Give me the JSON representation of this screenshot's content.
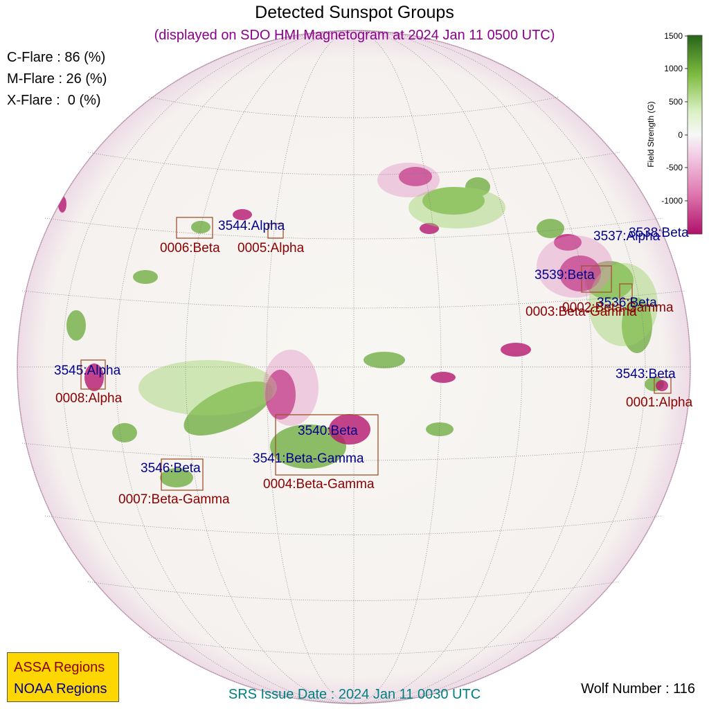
{
  "header": {
    "title": "Detected Sunspot Groups",
    "subtitle": "(displayed on SDO HMI Magnetogram at 2024 Jan 11 0500 UTC)"
  },
  "flare_probabilities": [
    {
      "label": "C-Flare : 86 (%)",
      "class": "C",
      "value": 86
    },
    {
      "label": "M-Flare : 26 (%)",
      "class": "M",
      "value": 26
    },
    {
      "label": "X-Flare :  0 (%)",
      "class": "X",
      "value": 0
    }
  ],
  "colorbar": {
    "label": "Field Strength (G)",
    "ticks": [
      "1500",
      "1000",
      "500",
      "0",
      "-500",
      "-1000"
    ],
    "range": [
      -1500,
      1500
    ],
    "colors": {
      "positive": "#2e6b1a",
      "mid_positive": "#8fcf5a",
      "neutral": "#f7f7f2",
      "mid_negative": "#e58ac2",
      "negative": "#b0106a"
    }
  },
  "regions": {
    "noaa": [
      {
        "label": "3544:Alpha"
      },
      {
        "label": "3537:Alpha"
      },
      {
        "label": "3538:Beta"
      },
      {
        "label": "3539:Beta"
      },
      {
        "label": "3536:Beta"
      },
      {
        "label": "3545:Alpha"
      },
      {
        "label": "3543:Beta"
      },
      {
        "label": "3540:Beta"
      },
      {
        "label": "3541:Beta-Gamma"
      },
      {
        "label": "3546:Beta"
      }
    ],
    "assa": [
      {
        "label": "0006:Beta"
      },
      {
        "label": "0005:Alpha"
      },
      {
        "label": "0002:Beta-Gamma"
      },
      {
        "label": "0003:Beta-Gamma"
      },
      {
        "label": "0008:Alpha"
      },
      {
        "label": "0001:Alpha"
      },
      {
        "label": "0004:Beta-Gamma"
      },
      {
        "label": "0007:Beta-Gamma"
      }
    ]
  },
  "legend": {
    "assa_label": "ASSA Regions",
    "noaa_label": "NOAA Regions",
    "assa_color": "#8b0000",
    "noaa_color": "#00008b",
    "background": "#ffd700"
  },
  "footer": {
    "srs_issue_date": "SRS Issue Date : 2024 Jan 11 0030 UTC",
    "wolf_number": "Wolf Number : 116"
  },
  "colors": {
    "title": "#000000",
    "subtitle": "#8b008b",
    "srs": "#008080",
    "box_stroke": "#a0522d"
  }
}
